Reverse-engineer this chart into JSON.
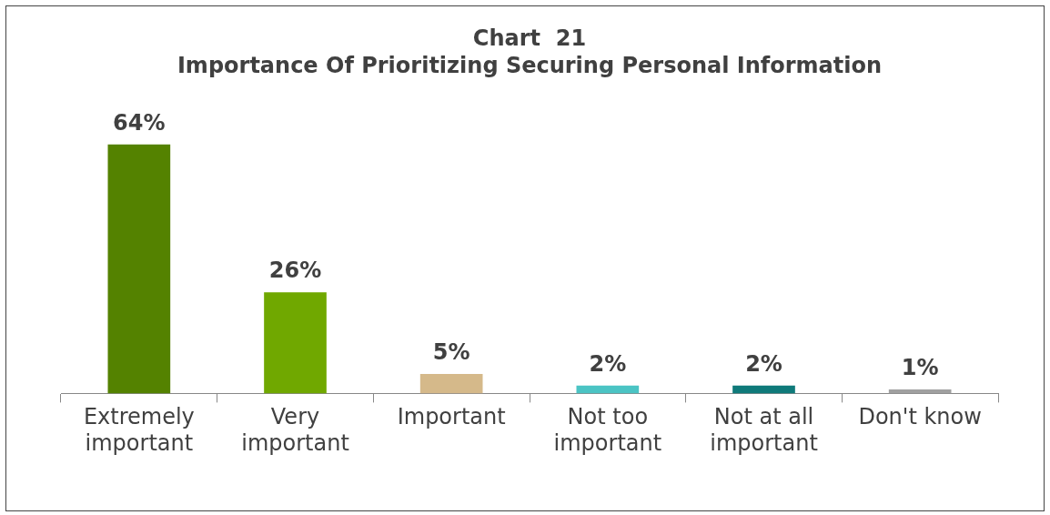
{
  "chart_data": {
    "type": "bar",
    "title": "Chart  21",
    "subtitle": "Importance Of Prioritizing Securing Personal Information",
    "categories": [
      "Extremely important",
      "Very important",
      "Important",
      "Not too important",
      "Not at all important",
      "Don't know"
    ],
    "values": [
      64,
      26,
      5,
      2,
      2,
      1
    ],
    "colors": [
      "#548200",
      "#70a800",
      "#d5b98a",
      "#4bc4c4",
      "#0f7a7a",
      "#a0a0a0"
    ],
    "value_labels": [
      "64%",
      "26%",
      "5%",
      "2%",
      "2%",
      "1%"
    ]
  }
}
